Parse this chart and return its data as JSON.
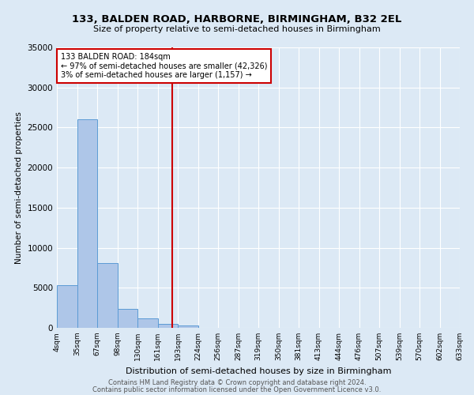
{
  "title": "133, BALDEN ROAD, HARBORNE, BIRMINGHAM, B32 2EL",
  "subtitle": "Size of property relative to semi-detached houses in Birmingham",
  "xlabel": "Distribution of semi-detached houses by size in Birmingham",
  "ylabel": "Number of semi-detached properties",
  "bin_labels": [
    "4sqm",
    "35sqm",
    "67sqm",
    "98sqm",
    "130sqm",
    "161sqm",
    "193sqm",
    "224sqm",
    "256sqm",
    "287sqm",
    "319sqm",
    "350sqm",
    "381sqm",
    "413sqm",
    "444sqm",
    "476sqm",
    "507sqm",
    "539sqm",
    "570sqm",
    "602sqm",
    "633sqm"
  ],
  "bar_values": [
    5300,
    26000,
    8100,
    2400,
    1200,
    500,
    300,
    0,
    0,
    0,
    0,
    0,
    0,
    0,
    0,
    0,
    0,
    0,
    0,
    0
  ],
  "bar_color": "#aec6e8",
  "bar_edge_color": "#5b9bd5",
  "ylim": [
    0,
    35000
  ],
  "yticks": [
    0,
    5000,
    10000,
    15000,
    20000,
    25000,
    30000,
    35000
  ],
  "marker_label_line1": "133 BALDEN ROAD: 184sqm",
  "marker_label_line2": "← 97% of semi-detached houses are smaller (42,326)",
  "marker_label_line3": "3% of semi-detached houses are larger (1,157) →",
  "annotation_box_color": "#ffffff",
  "annotation_border_color": "#cc0000",
  "marker_line_color": "#cc0000",
  "footer_line1": "Contains HM Land Registry data © Crown copyright and database right 2024.",
  "footer_line2": "Contains public sector information licensed under the Open Government Licence v3.0.",
  "background_color": "#dce9f5",
  "plot_bg_color": "#dce9f5",
  "grid_color": "#ffffff"
}
